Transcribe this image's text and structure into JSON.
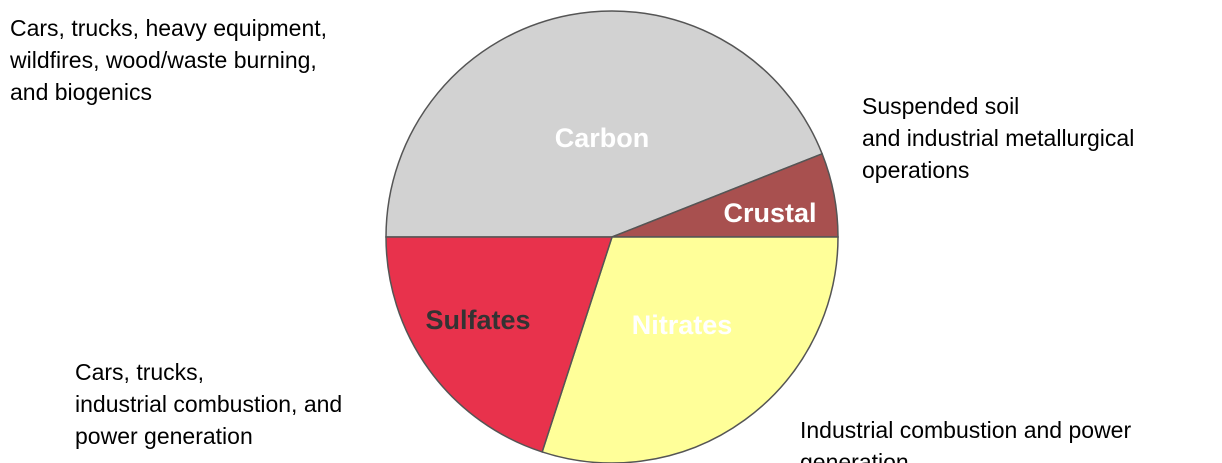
{
  "chart_data": {
    "type": "pie",
    "categories": [
      "Carbon",
      "Crustal",
      "Sulfates",
      "Nitrates"
    ],
    "values": [
      44,
      6,
      30,
      20
    ],
    "colors": [
      "#d2d2d2",
      "#a8504f",
      "#ffff99",
      "#e8324c"
    ],
    "label_colors": [
      "#ffffff",
      "#ffffff",
      "#333333",
      "#ffffff"
    ],
    "annotations": [
      {
        "lines": [
          "Cars, trucks, heavy equipment,",
          "wildfires, wood/waste burning,",
          "and biogenics"
        ]
      },
      {
        "lines": [
          "Suspended soil",
          "and industrial metallurgical",
          "operations"
        ]
      },
      {
        "lines": [
          "Industrial combustion and power",
          "generation"
        ]
      },
      {
        "lines": [
          "Cars, trucks,",
          "industrial combustion, and",
          "power generation"
        ]
      }
    ]
  }
}
